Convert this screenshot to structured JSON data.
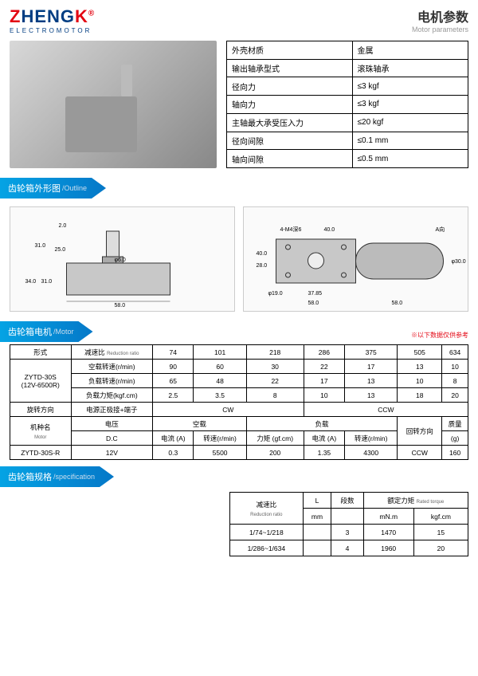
{
  "header": {
    "logo_z": "Z",
    "logo_heng": "HENG",
    "logo_k": "K",
    "logo_sub": "ELECTROMOTOR",
    "title_cn": "电机参数",
    "title_en": "Motor parameters"
  },
  "params": {
    "rows": [
      {
        "label": "外壳材质",
        "value": "金属"
      },
      {
        "label": "输出轴承型式",
        "value": "滚珠轴承"
      },
      {
        "label": "径向力",
        "value": "≤3 kgf"
      },
      {
        "label": "轴向力",
        "value": "≤3 kgf"
      },
      {
        "label": "主轴最大承受压入力",
        "value": "≤20 kgf"
      },
      {
        "label": "径向间隙",
        "value": "≤0.1 mm"
      },
      {
        "label": "轴向间隙",
        "value": "≤0.5 mm"
      }
    ]
  },
  "sections": {
    "outline_cn": "齿轮箱外形图",
    "outline_en": "/Outline",
    "motor_cn": "齿轮箱电机",
    "motor_en": "/Motor",
    "spec_cn": "齿轮箱规格",
    "spec_en": "/specification",
    "note": "※以下数据仅供参考"
  },
  "drawing_dims": {
    "left": [
      "2.0",
      "31.0",
      "25.0",
      "46.0",
      "34.0",
      "31.0",
      "58.0"
    ],
    "right": [
      "4-M4深6",
      "40.0",
      "A向",
      "40.0",
      "28.0",
      "φ19.0",
      "37.85",
      "58.0",
      "58.0",
      "φ30.0"
    ]
  },
  "motor_table": {
    "h_type": "形式",
    "h_ratio": "减速比",
    "h_ratio_sub": "Reduction ratio",
    "ratios": [
      "74",
      "101",
      "218",
      "286",
      "375",
      "505",
      "634"
    ],
    "model": "ZYTD-30S\n(12V-6500R)",
    "row_noload": "空载转速(r/min)",
    "noload": [
      "90",
      "60",
      "30",
      "22",
      "17",
      "13",
      "10"
    ],
    "row_load": "负载转速(r/min)",
    "load": [
      "65",
      "48",
      "22",
      "17",
      "13",
      "10",
      "8"
    ],
    "row_torque": "负载力矩(kgf.cm)",
    "torque": [
      "2.5",
      "3.5",
      "8",
      "10",
      "13",
      "18",
      "20"
    ],
    "h_dir": "旋转方向",
    "h_polarity": "电源正极接+端子",
    "cw": "CW",
    "ccw": "CCW",
    "h_model2": "机种名",
    "h_model2_sub": "Motor",
    "h_voltage": "电压",
    "h_dc": "D.C",
    "h_noload2": "空载",
    "h_current": "电流 (A)",
    "h_rpm": "转速(r/min)",
    "h_load2": "负载",
    "h_torque2": "力矩 (gf.cm)",
    "h_rotdir": "回转方向",
    "h_mass": "质量",
    "h_mass_unit": "(g)",
    "model2": "ZYTD-30S-R",
    "vals2": [
      "12V",
      "0.3",
      "5500",
      "200",
      "1.35",
      "4300",
      "CCW",
      "160"
    ]
  },
  "spec2": {
    "h_ratio": "减速比",
    "h_ratio_sub": "Reduction ratio",
    "h_L": "L",
    "h_stage": "段数",
    "h_torque": "额定力矩",
    "h_torque_sub": "Rated torque",
    "h_mm": "mm",
    "h_mnm": "mN.m",
    "h_kgf": "kgf.cm",
    "rows": [
      {
        "ratio": "1/74~1/218",
        "stage": "3",
        "mnm": "1470",
        "kgf": "15"
      },
      {
        "ratio": "1/286~1/634",
        "stage": "4",
        "mnm": "1960",
        "kgf": "20"
      }
    ]
  }
}
